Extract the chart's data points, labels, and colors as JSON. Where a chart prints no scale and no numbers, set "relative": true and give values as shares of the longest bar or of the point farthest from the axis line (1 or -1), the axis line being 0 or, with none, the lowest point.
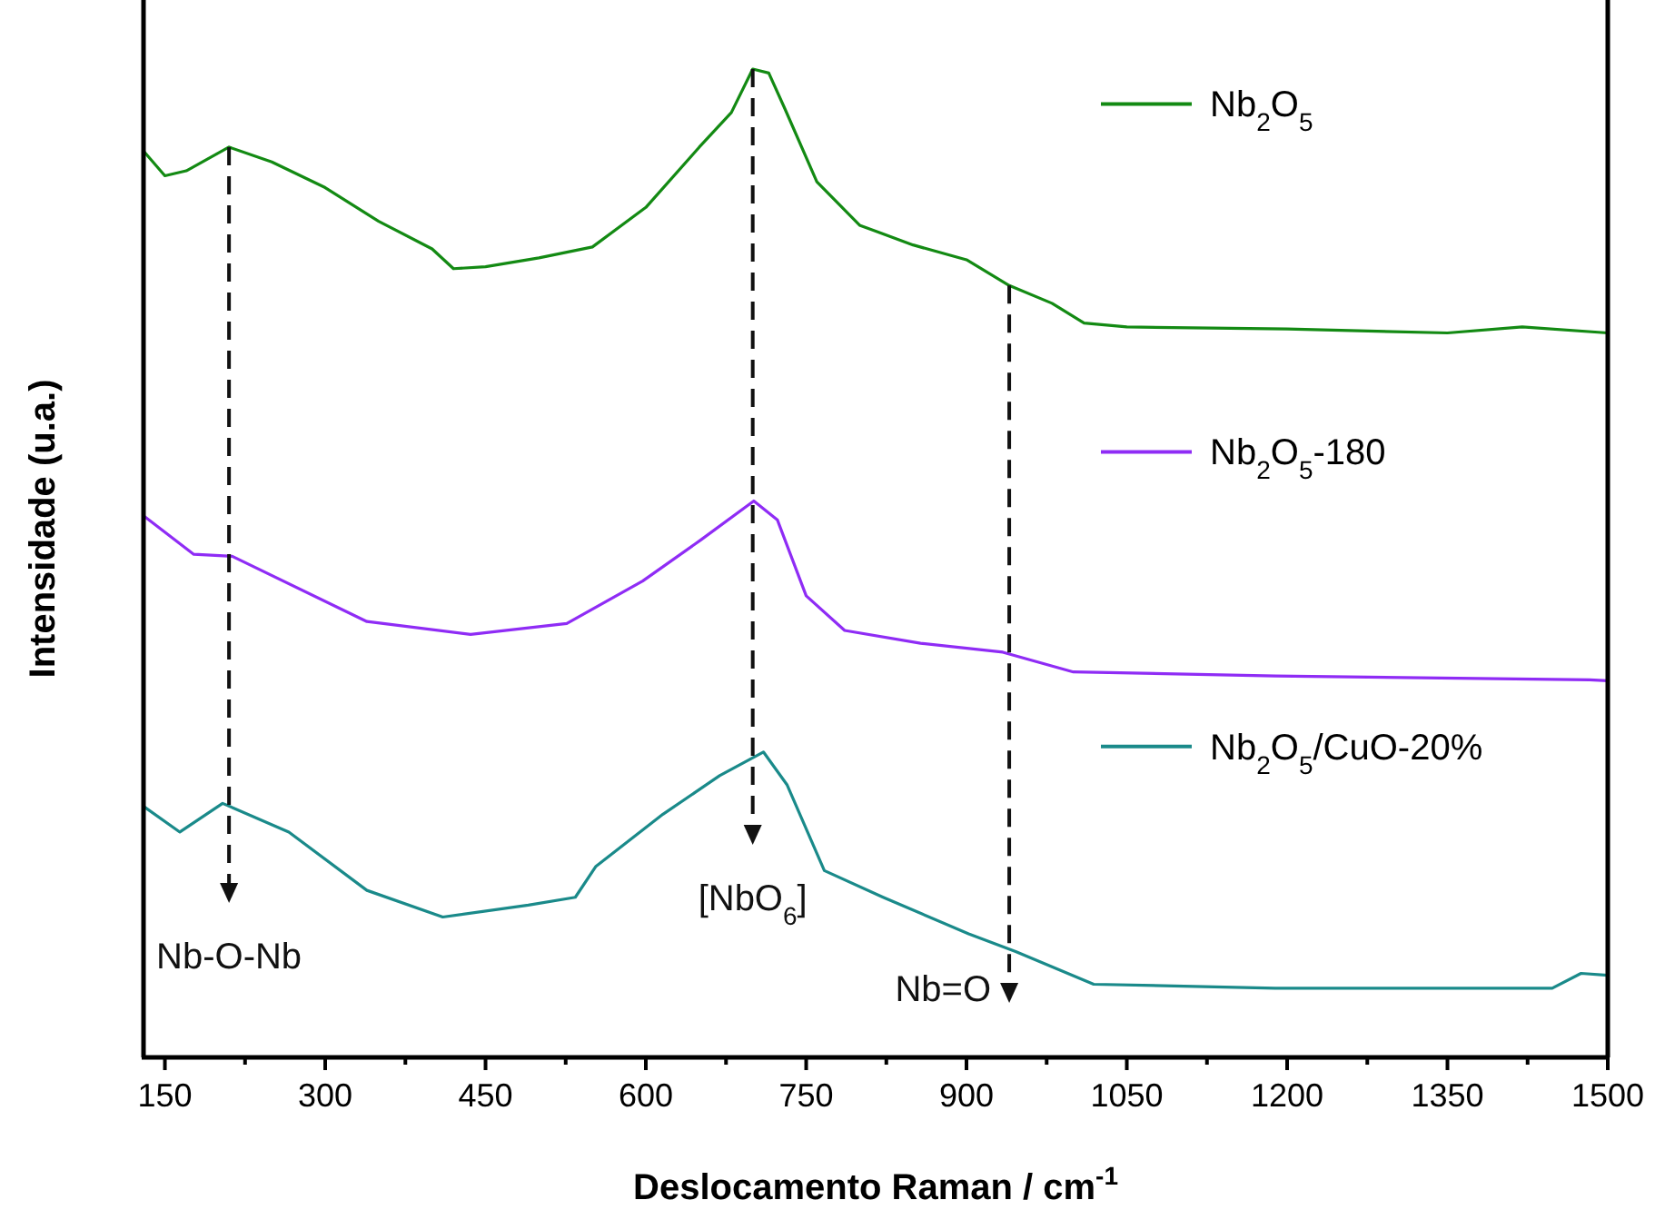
{
  "chart_data": {
    "type": "line",
    "relative": true,
    "xlabel": "Deslocamento Raman / cm$^{-1}$",
    "ylabel": "Intensidade (u.a.)",
    "xlim": [
      130,
      1500
    ],
    "xticks": [
      150,
      {
        "value": 225,
        "label": null
      },
      300,
      {
        "value": 375,
        "label": null
      },
      450,
      {
        "value": 525,
        "label": null
      },
      600,
      {
        "value": 675,
        "label": null
      },
      750,
      {
        "value": 825,
        "label": null
      },
      900,
      {
        "value": 975,
        "label": null
      },
      1050,
      {
        "value": 1125,
        "label": null
      },
      1200,
      {
        "value": 1275,
        "label": null
      },
      1350,
      {
        "value": 1425,
        "label": null
      },
      1500
    ],
    "tick_labels": "x",
    "grid": false,
    "legend": "right",
    "marker": "none",
    "line_style": "solid",
    "series": [
      {
        "name": "Nb$_{2}$O$_{5}$",
        "color": "#138a13",
        "x": [
          130,
          150,
          170,
          210,
          250,
          300,
          350,
          400,
          420,
          450,
          500,
          550,
          600,
          650,
          680,
          700,
          715,
          730,
          760,
          800,
          850,
          900,
          940,
          980,
          1010,
          1050,
          1200,
          1350,
          1420,
          1500
        ],
        "values": [
          0.917,
          0.892,
          0.897,
          0.921,
          0.906,
          0.88,
          0.846,
          0.818,
          0.798,
          0.8,
          0.809,
          0.82,
          0.86,
          0.921,
          0.956,
          1,
          0.996,
          0.96,
          0.886,
          0.842,
          0.822,
          0.807,
          0.781,
          0.763,
          0.743,
          0.739,
          0.737,
          0.733,
          0.739,
          0.733
        ]
      },
      {
        "name": "Nb$_{2}$O$_{5}$-180",
        "color": "#8f2cf5",
        "x": [
          130,
          177,
          213,
          339,
          436,
          526,
          597,
          652,
          701,
          723,
          750,
          786,
          857,
          934,
          1000,
          1189,
          1483,
          1500
        ],
        "values": [
          0.548,
          0.509,
          0.507,
          0.441,
          0.428,
          0.439,
          0.482,
          0.524,
          0.563,
          0.544,
          0.467,
          0.432,
          0.419,
          0.41,
          0.39,
          0.386,
          0.382,
          0.381
        ]
      },
      {
        "name": "Nb$_{2}$O$_{5}$/CuO-20%",
        "color": "#1a8a8a",
        "x": [
          130,
          164,
          204,
          266,
          339,
          410,
          490,
          534,
          553,
          616,
          669,
          710,
          732,
          767,
          822,
          902,
          946,
          1019,
          1189,
          1448,
          1475,
          1500
        ],
        "values": [
          0.254,
          0.228,
          0.257,
          0.228,
          0.169,
          0.142,
          0.154,
          0.162,
          0.193,
          0.246,
          0.285,
          0.309,
          0.276,
          0.189,
          0.162,
          0.125,
          0.107,
          0.074,
          0.07,
          0.07,
          0.085,
          0.083
        ]
      }
    ],
    "ref_lines": [
      {
        "axis": "x",
        "value": 210,
        "label": "Nb-O-Nb",
        "color": "#111111",
        "line_style": "dashed"
      },
      {
        "axis": "x",
        "value": 700,
        "label": "[NbO$_{6}$]",
        "color": "#111111",
        "line_style": "dashed"
      },
      {
        "axis": "x",
        "value": 940,
        "label": "Nb=O",
        "color": "#111111",
        "line_style": "dashed"
      }
    ]
  }
}
